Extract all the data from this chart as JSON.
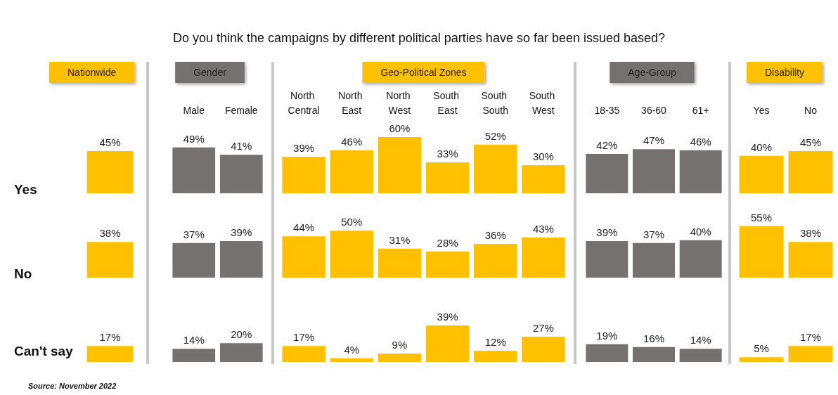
{
  "chart_data": [
    {
      "type": "bar",
      "title": "Nationwide",
      "ylabel": "Yes",
      "categories": [
        null
      ],
      "color": "#ffc000",
      "values": [
        45
      ],
      "value_labels": [
        "45%"
      ],
      "annotations": [
        "Do you think the campaigns by different political parties have so far been issued based?",
        "Source: November 2022"
      ]
    },
    {
      "type": "bar",
      "ylabel": "No",
      "categories": [
        null
      ],
      "color": "#ffc000",
      "values": [
        38
      ],
      "value_labels": [
        "38%"
      ],
      "tick_labels": false
    },
    {
      "type": "bar",
      "ylabel": "Can't say",
      "categories": [
        null
      ],
      "color": "#ffc000",
      "values": [
        17
      ],
      "value_labels": [
        "17%"
      ],
      "tick_labels": false
    },
    {
      "type": "bar",
      "title": "Gender",
      "categories": [
        "Male",
        "Female"
      ],
      "color": "#767171",
      "values": [
        49,
        41
      ],
      "value_labels": [
        "49%",
        "41%"
      ]
    },
    {
      "type": "bar",
      "categories": [
        "Male",
        "Female"
      ],
      "color": "#767171",
      "values": [
        37,
        39
      ],
      "value_labels": [
        "37%",
        "39%"
      ],
      "tick_labels": false
    },
    {
      "type": "bar",
      "categories": [
        "Male",
        "Female"
      ],
      "color": "#767171",
      "values": [
        14,
        20
      ],
      "value_labels": [
        "14%",
        "20%"
      ],
      "tick_labels": false
    },
    {
      "type": "bar",
      "title": "Geo-Political Zones",
      "categories": [
        "North Central",
        "North East",
        "North West",
        "South East",
        "South South",
        "South West"
      ],
      "color": "#ffc000",
      "values": [
        39,
        46,
        60,
        33,
        52,
        30
      ],
      "value_labels": [
        "39%",
        "46%",
        "60%",
        "33%",
        "52%",
        "30%"
      ]
    },
    {
      "type": "bar",
      "categories": [
        "North Central",
        "North East",
        "North West",
        "South East",
        "South South",
        "South West"
      ],
      "color": "#ffc000",
      "values": [
        44,
        50,
        31,
        28,
        36,
        43
      ],
      "value_labels": [
        "44%",
        "50%",
        "31%",
        "28%",
        "36%",
        "43%"
      ],
      "tick_labels": false
    },
    {
      "type": "bar",
      "categories": [
        "North Central",
        "North East",
        "North West",
        "South East",
        "South South",
        "South West"
      ],
      "color": "#ffc000",
      "values": [
        17,
        4,
        9,
        39,
        12,
        27
      ],
      "value_labels": [
        "17%",
        "4%",
        "9%",
        "39%",
        "12%",
        "27%"
      ],
      "tick_labels": false
    },
    {
      "type": "bar",
      "title": "Age-Group",
      "categories": [
        "18-35",
        "36-60",
        "61+"
      ],
      "color": "#767171",
      "values": [
        42,
        47,
        46
      ],
      "value_labels": [
        "42%",
        "47%",
        "46%"
      ]
    },
    {
      "type": "bar",
      "categories": [
        "18-35",
        "36-60",
        "61+"
      ],
      "color": "#767171",
      "values": [
        39,
        37,
        40
      ],
      "value_labels": [
        "39%",
        "37%",
        "40%"
      ],
      "tick_labels": false
    },
    {
      "type": "bar",
      "categories": [
        "18-35",
        "36-60",
        "61+"
      ],
      "color": "#767171",
      "values": [
        19,
        16,
        14
      ],
      "value_labels": [
        "19%",
        "16%",
        "14%"
      ],
      "tick_labels": false
    },
    {
      "type": "bar",
      "title": "Disability",
      "categories": [
        "Yes",
        "No"
      ],
      "color": "#ffc000",
      "values": [
        40,
        45
      ],
      "value_labels": [
        "40%",
        "45%"
      ]
    },
    {
      "type": "bar",
      "categories": [
        "Yes",
        "No"
      ],
      "color": "#ffc000",
      "values": [
        55,
        38
      ],
      "value_labels": [
        "55%",
        "38%"
      ],
      "tick_labels": false
    },
    {
      "type": "bar",
      "categories": [
        "Yes",
        "No"
      ],
      "color": "#ffc000",
      "values": [
        5,
        17
      ],
      "value_labels": [
        "5%",
        "17%"
      ],
      "tick_labels": false
    }
  ]
}
